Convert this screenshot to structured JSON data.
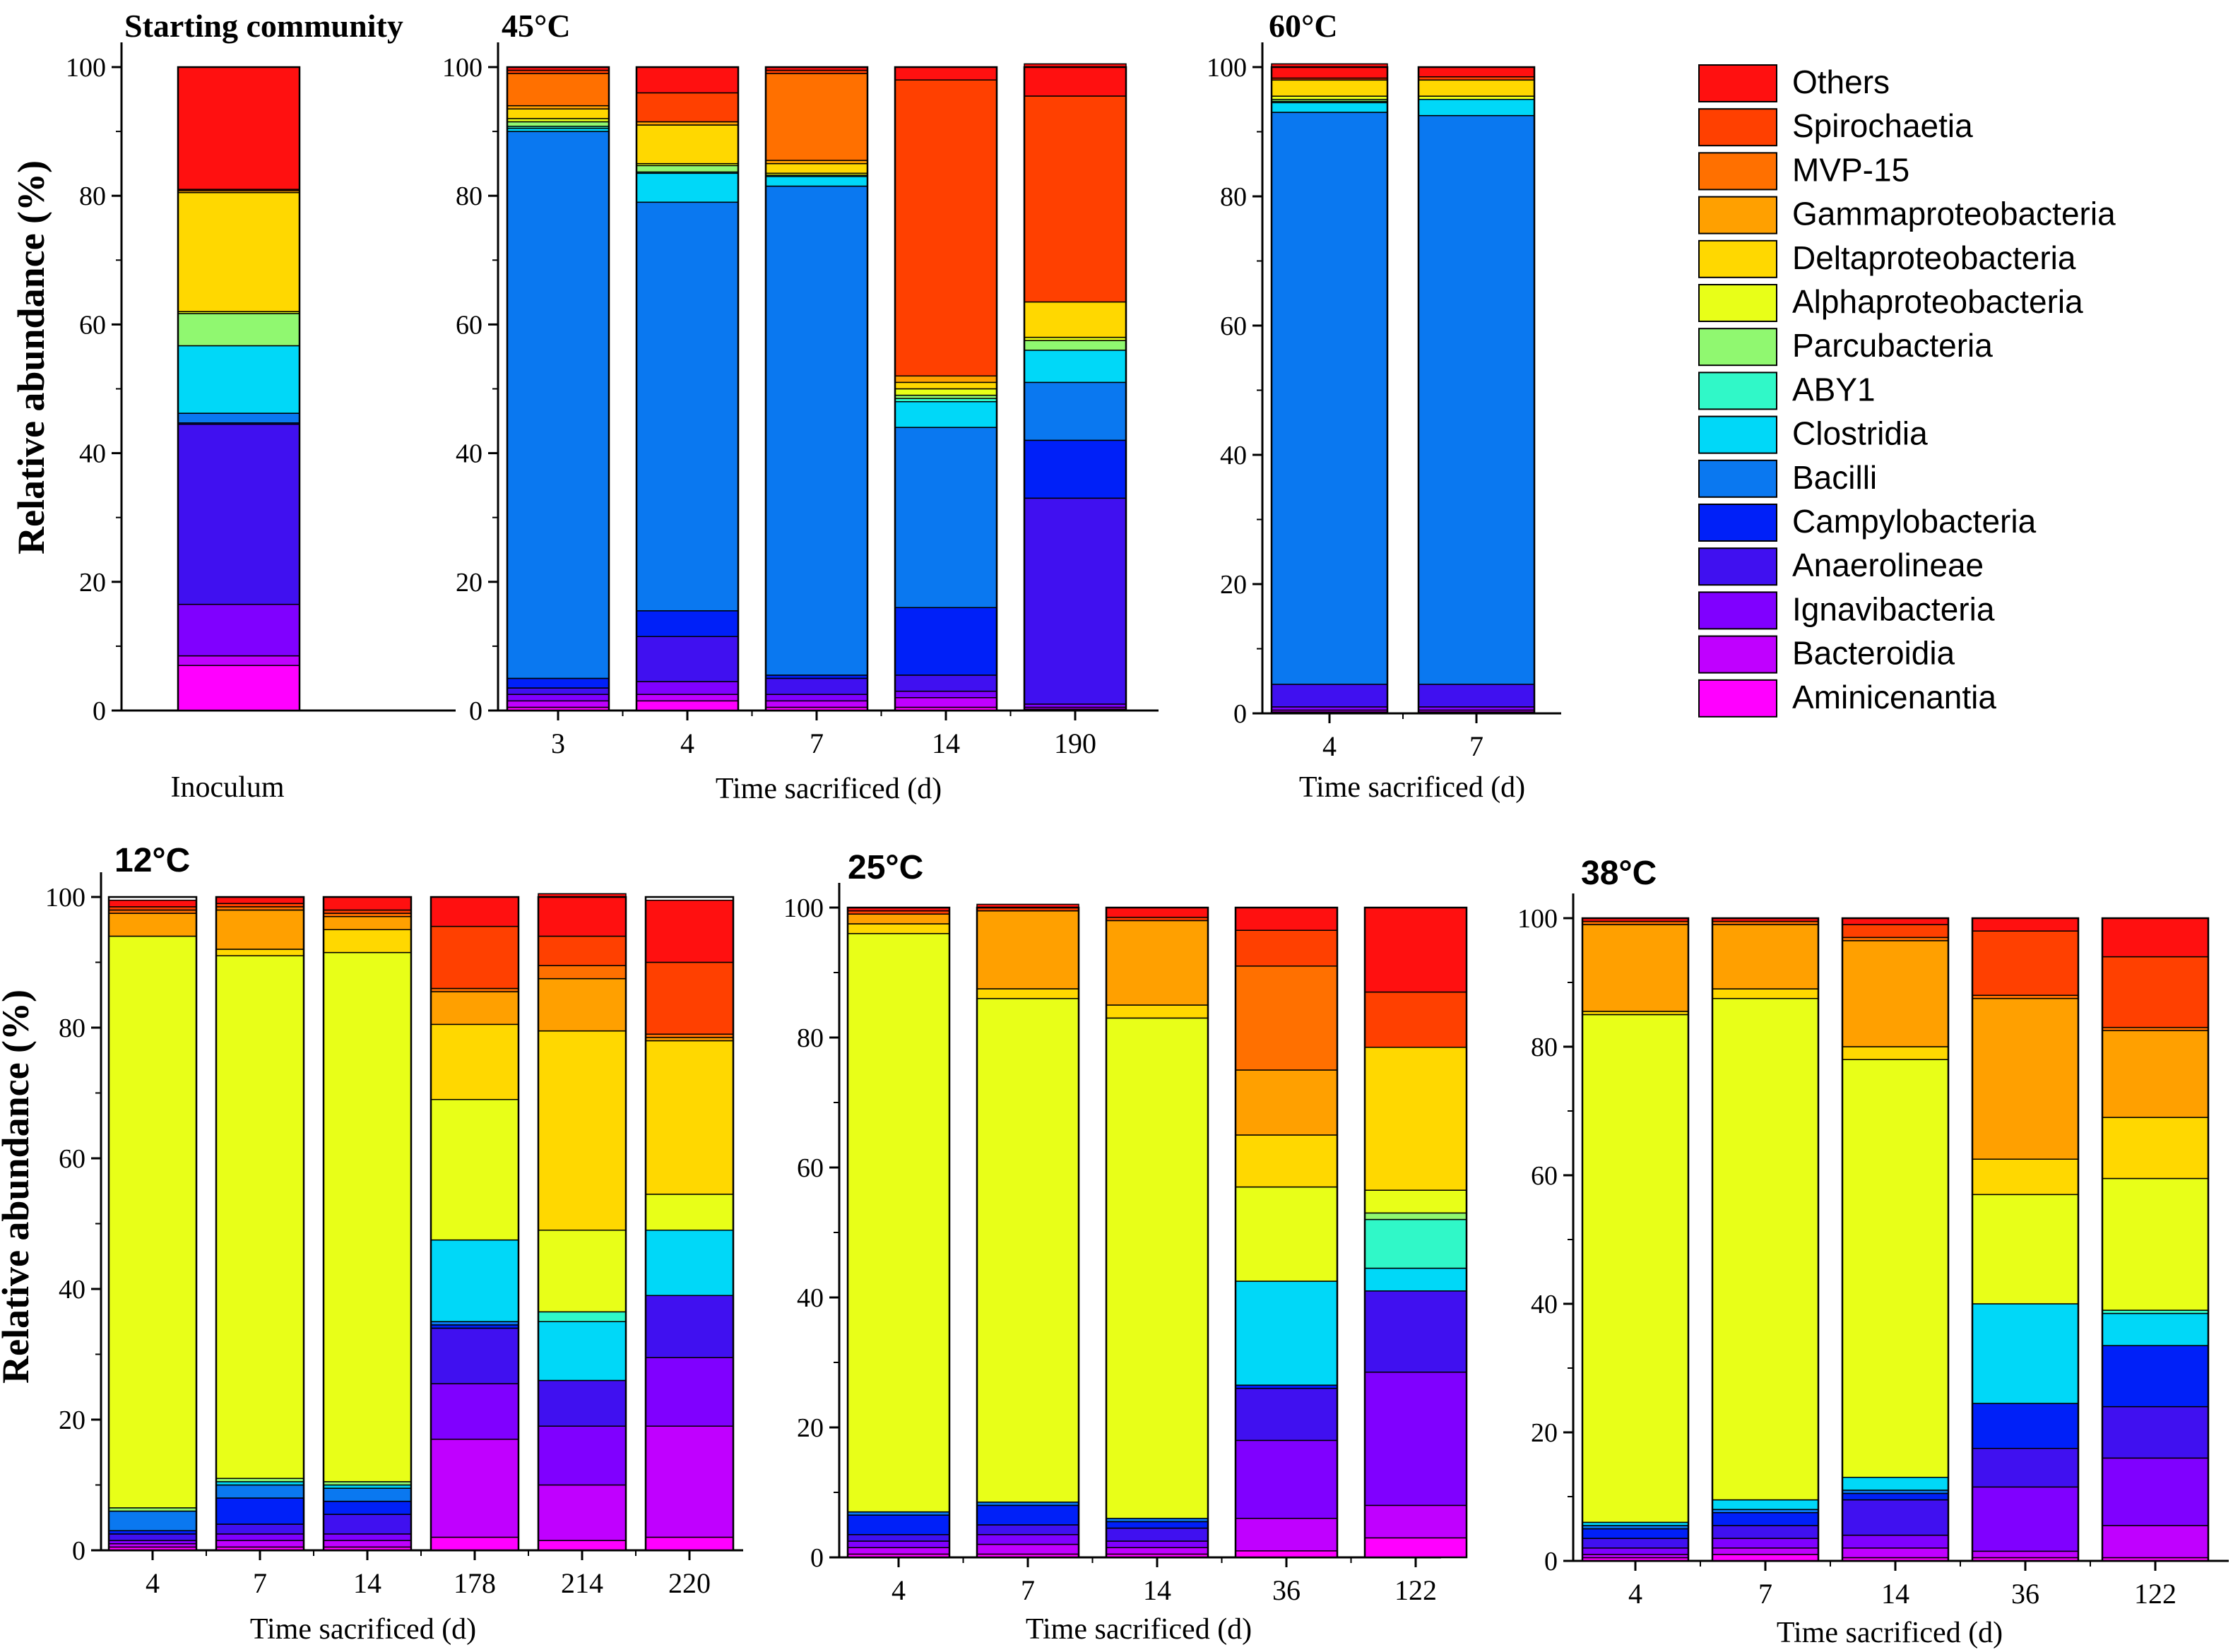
{
  "legend": {
    "entries": [
      "Others",
      "Spirochaetia",
      "MVP-15",
      "Gammaproteobacteria",
      "Deltaproteobacteria",
      "Alphaproteobacteria",
      "Parcubacteria",
      "ABY1",
      "Clostridia",
      "Bacilli",
      "Campylobacteria",
      "Anaerolineae",
      "Ignavibacteria",
      "Bacteroidia",
      "Aminicenantia"
    ]
  },
  "colors": {
    "Aminicenantia": "#ff00ff",
    "Bacteroidia": "#c000ff",
    "Ignavibacteria": "#8000ff",
    "Anaerolineae": "#4010f0",
    "Campylobacteria": "#0020f8",
    "Bacilli": "#0a78f0",
    "Clostridia": "#00d8f8",
    "ABY1": "#30f8c8",
    "Parcubacteria": "#90f870",
    "Alphaproteobacteria": "#e8ff18",
    "Deltaproteobacteria": "#ffd800",
    "Gammaproteobacteria": "#ffa000",
    "MVP-15": "#ff7000",
    "Spirochaetia": "#ff4000",
    "Others": "#ff1010"
  },
  "stack_order": [
    "Aminicenantia",
    "Bacteroidia",
    "Ignavibacteria",
    "Anaerolineae",
    "Campylobacteria",
    "Bacilli",
    "Clostridia",
    "ABY1",
    "Parcubacteria",
    "Alphaproteobacteria",
    "Deltaproteobacteria",
    "Gammaproteobacteria",
    "MVP-15",
    "Spirochaetia",
    "Others"
  ],
  "chart_data": [
    {
      "type": "bar",
      "stacked": true,
      "title": "Starting community",
      "xlabel": "",
      "ylabel": "Relative abundance (%)",
      "ylim": [
        0,
        100
      ],
      "yticks": [
        "0",
        "20",
        "40",
        "60",
        "80",
        "100"
      ],
      "categories": [
        "Inoculum"
      ],
      "series": [
        {
          "name": "Aminicenantia",
          "values": [
            7
          ]
        },
        {
          "name": "Bacteroidia",
          "values": [
            1.5
          ]
        },
        {
          "name": "Ignavibacteria",
          "values": [
            8
          ]
        },
        {
          "name": "Anaerolineae",
          "values": [
            28
          ]
        },
        {
          "name": "Campylobacteria",
          "values": [
            0.2
          ]
        },
        {
          "name": "Bacilli",
          "values": [
            1.5
          ]
        },
        {
          "name": "Clostridia",
          "values": [
            10.5
          ]
        },
        {
          "name": "ABY1",
          "values": [
            0
          ]
        },
        {
          "name": "Parcubacteria",
          "values": [
            5
          ]
        },
        {
          "name": "Alphaproteobacteria",
          "values": [
            0.3
          ]
        },
        {
          "name": "Deltaproteobacteria",
          "values": [
            18.5
          ]
        },
        {
          "name": "Gammaproteobacteria",
          "values": [
            0.3
          ]
        },
        {
          "name": "MVP-15",
          "values": [
            0
          ]
        },
        {
          "name": "Spirochaetia",
          "values": [
            0.2
          ]
        },
        {
          "name": "Others",
          "values": [
            19
          ]
        }
      ]
    },
    {
      "type": "bar",
      "stacked": true,
      "title": "45°C",
      "xlabel": "Time sacrificed (d)",
      "ylabel": "",
      "ylim": [
        0,
        100
      ],
      "yticks": [
        "0",
        "20",
        "40",
        "60",
        "80",
        "100"
      ],
      "categories": [
        "3",
        "4",
        "7",
        "14",
        "190"
      ],
      "series": [
        {
          "name": "Aminicenantia",
          "values": [
            0.5,
            1.5,
            0.5,
            0.5,
            0.2
          ]
        },
        {
          "name": "Bacteroidia",
          "values": [
            1,
            1,
            1,
            1.5,
            0.3
          ]
        },
        {
          "name": "Ignavibacteria",
          "values": [
            1,
            2,
            1,
            1,
            0.5
          ]
        },
        {
          "name": "Anaerolineae",
          "values": [
            1,
            7,
            2.5,
            2.5,
            32
          ]
        },
        {
          "name": "Campylobacteria",
          "values": [
            1.5,
            4,
            0.5,
            10.5,
            9
          ]
        },
        {
          "name": "Bacilli",
          "values": [
            85,
            63.5,
            76,
            28,
            9
          ]
        },
        {
          "name": "Clostridia",
          "values": [
            0.5,
            4.5,
            1.5,
            4,
            5
          ]
        },
        {
          "name": "ABY1",
          "values": [
            0.3,
            0.2,
            0.2,
            0.5,
            0
          ]
        },
        {
          "name": "Parcubacteria",
          "values": [
            0.7,
            1,
            0,
            0.5,
            1.5
          ]
        },
        {
          "name": "Alphaproteobacteria",
          "values": [
            0.5,
            0.3,
            0.3,
            1,
            0.5
          ]
        },
        {
          "name": "Deltaproteobacteria",
          "values": [
            1.5,
            6,
            1.5,
            1,
            5.5
          ]
        },
        {
          "name": "Gammaproteobacteria",
          "values": [
            0.5,
            0.5,
            0.5,
            1,
            0
          ]
        },
        {
          "name": "MVP-15",
          "values": [
            5,
            0,
            13.5,
            0,
            0
          ]
        },
        {
          "name": "Spirochaetia",
          "values": [
            0.5,
            4.5,
            0.5,
            46,
            32
          ]
        },
        {
          "name": "Others",
          "values": [
            0.5,
            4,
            0.5,
            2,
            5
          ]
        }
      ]
    },
    {
      "type": "bar",
      "stacked": true,
      "title": "60°C",
      "xlabel": "Time sacrificed (d)",
      "ylabel": "",
      "ylim": [
        0,
        100
      ],
      "yticks": [
        "0",
        "20",
        "40",
        "60",
        "80",
        "100"
      ],
      "categories": [
        "4",
        "7"
      ],
      "series": [
        {
          "name": "Aminicenantia",
          "values": [
            0.2,
            0.2
          ]
        },
        {
          "name": "Bacteroidia",
          "values": [
            0.3,
            0.3
          ]
        },
        {
          "name": "Ignavibacteria",
          "values": [
            0.5,
            0.5
          ]
        },
        {
          "name": "Anaerolineae",
          "values": [
            3.5,
            3.5
          ]
        },
        {
          "name": "Campylobacteria",
          "values": [
            0,
            0
          ]
        },
        {
          "name": "Bacilli",
          "values": [
            88.5,
            88
          ]
        },
        {
          "name": "Clostridia",
          "values": [
            1.5,
            2.5
          ]
        },
        {
          "name": "ABY1",
          "values": [
            0.2,
            0
          ]
        },
        {
          "name": "Parcubacteria",
          "values": [
            0.3,
            0
          ]
        },
        {
          "name": "Alphaproteobacteria",
          "values": [
            0.5,
            0.5
          ]
        },
        {
          "name": "Deltaproteobacteria",
          "values": [
            2.5,
            2.5
          ]
        },
        {
          "name": "Gammaproteobacteria",
          "values": [
            0,
            0
          ]
        },
        {
          "name": "MVP-15",
          "values": [
            0,
            0
          ]
        },
        {
          "name": "Spirochaetia",
          "values": [
            0.3,
            0.5
          ]
        },
        {
          "name": "Others",
          "values": [
            2.2,
            1.5
          ]
        }
      ]
    },
    {
      "type": "bar",
      "stacked": true,
      "title": "12°C",
      "xlabel": "Time sacrificed (d)",
      "ylabel": "Relative abundance (%)",
      "ylim": [
        0,
        100
      ],
      "yticks": [
        "0",
        "20",
        "40",
        "60",
        "80",
        "100"
      ],
      "categories": [
        "4",
        "7",
        "14",
        "178",
        "214",
        "220"
      ],
      "series": [
        {
          "name": "Aminicenantia",
          "values": [
            0.5,
            0.5,
            0.5,
            2,
            1.5,
            2
          ]
        },
        {
          "name": "Bacteroidia",
          "values": [
            0.5,
            1,
            1,
            15,
            8.5,
            17
          ]
        },
        {
          "name": "Ignavibacteria",
          "values": [
            0.5,
            1,
            1,
            8.5,
            9,
            10.5
          ]
        },
        {
          "name": "Anaerolineae",
          "values": [
            1,
            1.5,
            3,
            8.5,
            7,
            9.5
          ]
        },
        {
          "name": "Campylobacteria",
          "values": [
            0.5,
            4,
            2,
            0.5,
            0,
            0
          ]
        },
        {
          "name": "Bacilli",
          "values": [
            3,
            2,
            2,
            0.5,
            0,
            0
          ]
        },
        {
          "name": "Clostridia",
          "values": [
            0,
            0.5,
            0.5,
            12.5,
            9,
            10
          ]
        },
        {
          "name": "ABY1",
          "values": [
            0,
            0,
            0,
            0,
            1.5,
            0
          ]
        },
        {
          "name": "Parcubacteria",
          "values": [
            0.5,
            0.5,
            0.5,
            0,
            0,
            0
          ]
        },
        {
          "name": "Alphaproteobacteria",
          "values": [
            87.5,
            80,
            81,
            21.5,
            12.5,
            5.5
          ]
        },
        {
          "name": "Deltaproteobacteria",
          "values": [
            0,
            1,
            3.5,
            11.5,
            30.5,
            23.5
          ]
        },
        {
          "name": "Gammaproteobacteria",
          "values": [
            3.5,
            6,
            2,
            5,
            8,
            0.5
          ]
        },
        {
          "name": "MVP-15",
          "values": [
            0.5,
            0.5,
            0.5,
            0.5,
            2,
            0.5
          ]
        },
        {
          "name": "Spirochaetia",
          "values": [
            0.5,
            0.5,
            0.5,
            9.5,
            4.5,
            11
          ]
        },
        {
          "name": "Others",
          "values": [
            1,
            1,
            2,
            4.5,
            6.5,
            9.5
          ]
        }
      ]
    },
    {
      "type": "bar",
      "stacked": true,
      "title": "25°C",
      "xlabel": "Time sacrificed (d)",
      "ylabel": "",
      "ylim": [
        0,
        100
      ],
      "yticks": [
        "0",
        "20",
        "40",
        "60",
        "80",
        "100"
      ],
      "categories": [
        "4",
        "7",
        "14",
        "36",
        "122"
      ],
      "series": [
        {
          "name": "Aminicenantia",
          "values": [
            0.5,
            0.5,
            0.5,
            1,
            3
          ]
        },
        {
          "name": "Bacteroidia",
          "values": [
            1,
            1.5,
            1,
            5,
            5
          ]
        },
        {
          "name": "Ignavibacteria",
          "values": [
            1,
            1.5,
            1,
            12,
            20.5
          ]
        },
        {
          "name": "Anaerolineae",
          "values": [
            1,
            1.5,
            2,
            8,
            12.5
          ]
        },
        {
          "name": "Campylobacteria",
          "values": [
            3,
            3,
            1,
            0.5,
            0
          ]
        },
        {
          "name": "Bacilli",
          "values": [
            0.5,
            0.5,
            0.5,
            0,
            0
          ]
        },
        {
          "name": "Clostridia",
          "values": [
            0,
            0,
            0,
            16,
            3.5
          ]
        },
        {
          "name": "ABY1",
          "values": [
            0,
            0,
            0,
            0,
            7.5
          ]
        },
        {
          "name": "Parcubacteria",
          "values": [
            0,
            0,
            0,
            0,
            1
          ]
        },
        {
          "name": "Alphaproteobacteria",
          "values": [
            89,
            77.5,
            77,
            14.5,
            3.5
          ]
        },
        {
          "name": "Deltaproteobacteria",
          "values": [
            1.5,
            1.5,
            2,
            8,
            22
          ]
        },
        {
          "name": "Gammaproteobacteria",
          "values": [
            1.5,
            12,
            13,
            10,
            0
          ]
        },
        {
          "name": "MVP-15",
          "values": [
            0,
            0,
            0,
            16,
            0
          ]
        },
        {
          "name": "Spirochaetia",
          "values": [
            0.5,
            0.5,
            0.5,
            5.5,
            8.5
          ]
        },
        {
          "name": "Others",
          "values": [
            0.5,
            0.5,
            1.5,
            3.5,
            13
          ]
        }
      ]
    },
    {
      "type": "bar",
      "stacked": true,
      "title": "38°C",
      "xlabel": "Time sacrificed (d)",
      "ylabel": "",
      "ylim": [
        0,
        100
      ],
      "yticks": [
        "0",
        "20",
        "40",
        "60",
        "80",
        "100"
      ],
      "categories": [
        "4",
        "7",
        "14",
        "36",
        "122"
      ],
      "series": [
        {
          "name": "Aminicenantia",
          "values": [
            0.5,
            1,
            0.5,
            0.5,
            0.5
          ]
        },
        {
          "name": "Bacteroidia",
          "values": [
            0.5,
            1,
            1.5,
            1,
            5
          ]
        },
        {
          "name": "Ignavibacteria",
          "values": [
            1,
            1.5,
            2,
            10,
            10.5
          ]
        },
        {
          "name": "Anaerolineae",
          "values": [
            1.5,
            2,
            5.5,
            6,
            8
          ]
        },
        {
          "name": "Campylobacteria",
          "values": [
            1.5,
            2,
            1,
            7,
            9.5
          ]
        },
        {
          "name": "Bacilli",
          "values": [
            0.5,
            0.5,
            0.5,
            0,
            0
          ]
        },
        {
          "name": "Clostridia",
          "values": [
            0.5,
            1.5,
            2,
            15.5,
            5
          ]
        },
        {
          "name": "ABY1",
          "values": [
            0,
            0,
            0,
            0,
            0.5
          ]
        },
        {
          "name": "Parcubacteria",
          "values": [
            0,
            0,
            0,
            0,
            0
          ]
        },
        {
          "name": "Alphaproteobacteria",
          "values": [
            79,
            78,
            65,
            17,
            20.5
          ]
        },
        {
          "name": "Deltaproteobacteria",
          "values": [
            0.5,
            1.5,
            2,
            5.5,
            9.5
          ]
        },
        {
          "name": "Gammaproteobacteria",
          "values": [
            13.5,
            10,
            16.5,
            25,
            13.5
          ]
        },
        {
          "name": "MVP-15",
          "values": [
            0.5,
            0.5,
            0.5,
            0.5,
            0.5
          ]
        },
        {
          "name": "Spirochaetia",
          "values": [
            0,
            0,
            2,
            10,
            11
          ]
        },
        {
          "name": "Others",
          "values": [
            0.5,
            0.5,
            1,
            2,
            6
          ]
        }
      ]
    }
  ]
}
